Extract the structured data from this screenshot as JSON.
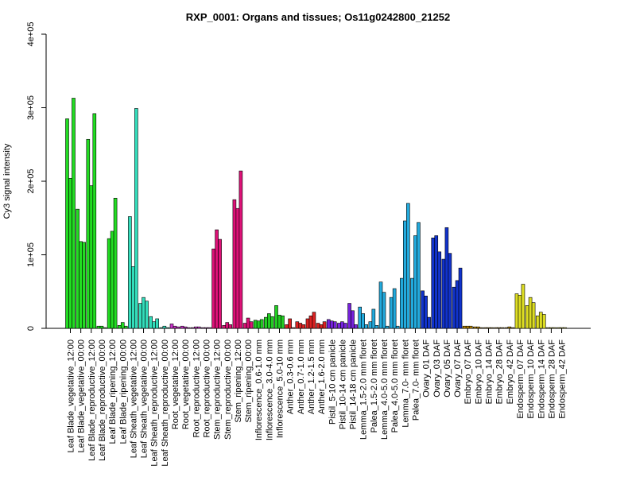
{
  "chart_data": {
    "type": "bar",
    "title": "RXP_0001: Organs and tissues; Os11g0242800_21252",
    "xlabel": "",
    "ylabel": "Cy3 signal intensity",
    "ylim": [
      0,
      400000
    ],
    "yticks": [
      0,
      100000,
      200000,
      300000,
      400000
    ],
    "ytick_labels": [
      "0",
      "1e+05",
      "2e+05",
      "3e+05",
      "4e+05"
    ],
    "grid": false,
    "legend": "none",
    "groups": [
      {
        "label": "Leaf Blade_vegetative_12:00",
        "color": "#22dd22",
        "values": [
          285000,
          204000,
          313000
        ]
      },
      {
        "label": "Leaf Blade_vegetative_00:00",
        "color": "#22dd22",
        "values": [
          162000,
          118000,
          117000
        ]
      },
      {
        "label": "Leaf Blade_reproductive_12:00",
        "color": "#22dd22",
        "values": [
          257000,
          194000,
          292000
        ]
      },
      {
        "label": "Leaf Blade_reproductive_00:00",
        "color": "#22dd22",
        "values": [
          3000,
          3000,
          1000
        ]
      },
      {
        "label": "Leaf Blade_ripening_12:00",
        "color": "#22dd22",
        "values": [
          122000,
          132000,
          177000
        ]
      },
      {
        "label": "Leaf Blade_ripening_00:00",
        "color": "#22dd22",
        "values": [
          4000,
          8000,
          3000
        ]
      },
      {
        "label": "Leaf Sheath_vegetative_12:00",
        "color": "#33ddbb",
        "values": [
          152000,
          84000,
          299000
        ]
      },
      {
        "label": "Leaf Sheath_vegetative_00:00",
        "color": "#33ddbb",
        "values": [
          34000,
          42000,
          37000
        ]
      },
      {
        "label": "Leaf Sheath_reproductive_12:00",
        "color": "#33ddbb",
        "values": [
          16000,
          9000,
          13000
        ]
      },
      {
        "label": "Leaf Sheath_reproductive_00:00",
        "color": "#33ddbb",
        "values": [
          1000,
          3000,
          1000
        ]
      },
      {
        "label": "Root_vegetative_12:00",
        "color": "#cc33cc",
        "values": [
          6000,
          3000,
          2000
        ]
      },
      {
        "label": "Root_vegetative_00:00",
        "color": "#cc33cc",
        "values": [
          3000,
          2000,
          1000
        ]
      },
      {
        "label": "Root_reproductive_12:00",
        "color": "#cc33cc",
        "values": [
          1000,
          2000,
          2000
        ]
      },
      {
        "label": "Root_reproductive_00:00",
        "color": "#cc33cc",
        "values": [
          1000,
          1000,
          1000
        ]
      },
      {
        "label": "Stem_reproductive_12:00",
        "color": "#dd1177",
        "values": [
          108000,
          134000,
          121000
        ]
      },
      {
        "label": "Stem_reproductive_00:00",
        "color": "#dd1177",
        "values": [
          4000,
          8000,
          5000
        ]
      },
      {
        "label": "Stem_ripening_12:00",
        "color": "#dd1177",
        "values": [
          175000,
          163000,
          214000
        ]
      },
      {
        "label": "Stem_ripening_00:00",
        "color": "#dd1177",
        "values": [
          7000,
          14000,
          9000
        ]
      },
      {
        "label": "Inflorescence_0.6-1.0 mm",
        "color": "#22cc22",
        "values": [
          11000,
          10000,
          12000
        ]
      },
      {
        "label": "Inflorescence_3.0-4.0 mm",
        "color": "#22cc22",
        "values": [
          15000,
          20000,
          16000
        ]
      },
      {
        "label": "Inflorescence_5.0-10 mm",
        "color": "#22cc22",
        "values": [
          31000,
          18000,
          17000
        ]
      },
      {
        "label": "Anther_0.3-0.6 mm",
        "color": "#dd2222",
        "values": [
          5000,
          13000,
          1000
        ]
      },
      {
        "label": "Anther_0.7-1.0 mm",
        "color": "#dd2222",
        "values": [
          9000,
          7000,
          5000
        ]
      },
      {
        "label": "Anther_1.2-1.5 mm",
        "color": "#dd2222",
        "values": [
          13000,
          17000,
          22000
        ]
      },
      {
        "label": "Anther_1.6-2.0 mm",
        "color": "#dd2222",
        "values": [
          7000,
          5000,
          9000
        ]
      },
      {
        "label": "Pistil_5-10 cm panicle",
        "color": "#7722dd",
        "values": [
          12000,
          10000,
          9000
        ]
      },
      {
        "label": "Pistil_10-14 cm panicle",
        "color": "#7722dd",
        "values": [
          7000,
          9000,
          7000
        ]
      },
      {
        "label": "Pistil_14-18 cm panicle",
        "color": "#7722dd",
        "values": [
          34000,
          24000,
          5000
        ]
      },
      {
        "label": "Lemma_1.5-2.0 mm floret",
        "color": "#22aadd",
        "values": [
          29000,
          20000,
          5000
        ]
      },
      {
        "label": "Palea_1.5-2.0 mm floret",
        "color": "#22aadd",
        "values": [
          9000,
          26000,
          4000
        ]
      },
      {
        "label": "Lemma_4.0-5.0 mm floret",
        "color": "#22aadd",
        "values": [
          63000,
          49000,
          3000
        ]
      },
      {
        "label": "Palea_4.0-5.0 mm floret",
        "color": "#22aadd",
        "values": [
          42000,
          54000,
          3000
        ]
      },
      {
        "label": "Lemma_7.0- mm floret",
        "color": "#22aadd",
        "values": [
          68000,
          146000,
          170000
        ]
      },
      {
        "label": "Palea_7.0- mm floret",
        "color": "#22aadd",
        "values": [
          68000,
          126000,
          144000
        ]
      },
      {
        "label": "Ovary_01 DAF",
        "color": "#1133cc",
        "values": [
          51000,
          44000,
          15000
        ]
      },
      {
        "label": "Ovary_03 DAF",
        "color": "#1133cc",
        "values": [
          123000,
          126000,
          104000
        ]
      },
      {
        "label": "Ovary_05 DAF",
        "color": "#1133cc",
        "values": [
          94000,
          137000,
          102000
        ]
      },
      {
        "label": "Ovary_07 DAF",
        "color": "#1133cc",
        "values": [
          56000,
          65000,
          82000
        ]
      },
      {
        "label": "Embryo_07 DAF",
        "color": "#bb8800",
        "values": [
          3000,
          3000,
          3000
        ]
      },
      {
        "label": "Embryo_10 DAF",
        "color": "#bb8800",
        "values": [
          2000,
          2000,
          1000
        ]
      },
      {
        "label": "Embryo_14 DAF",
        "color": "#bb8800",
        "values": [
          1000,
          1000,
          1000
        ]
      },
      {
        "label": "Embryo_28 DAF",
        "color": "#bb8800",
        "values": [
          1000,
          1000,
          1000
        ]
      },
      {
        "label": "Embryo_42 DAF",
        "color": "#bb8800",
        "values": [
          1000,
          2000,
          1000
        ]
      },
      {
        "label": "Endosperm_07 DAF",
        "color": "#dddd22",
        "values": [
          47000,
          45000,
          60000
        ]
      },
      {
        "label": "Endosperm_10 DAF",
        "color": "#dddd22",
        "values": [
          31000,
          42000,
          35000
        ]
      },
      {
        "label": "Endosperm_14 DAF",
        "color": "#dddd22",
        "values": [
          17000,
          22000,
          19000
        ]
      },
      {
        "label": "Endosperm_28 DAF",
        "color": "#dddd22",
        "values": [
          1000,
          1000,
          1000
        ]
      },
      {
        "label": "Endosperm_42 DAF",
        "color": "#dddd22",
        "values": [
          1000,
          1000,
          1000
        ]
      }
    ]
  }
}
